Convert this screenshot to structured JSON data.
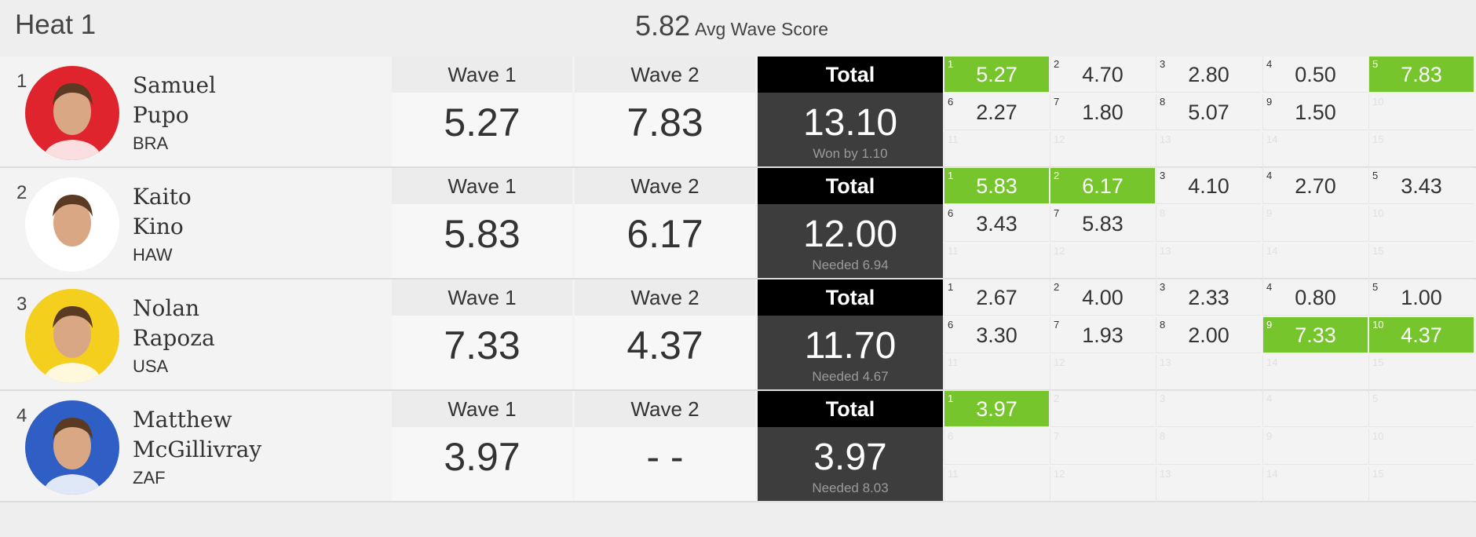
{
  "heat": {
    "title": "Heat 1",
    "avg_value": "5.82",
    "avg_label": "Avg Wave Score"
  },
  "colors": {
    "best_wave": "#76c52c",
    "total_bg": "#3d3d3d",
    "total_header": "#000000"
  },
  "surfers": [
    {
      "rank": "1",
      "first": "Samuel",
      "last": "Pupo",
      "country": "BRA",
      "wave1_label": "Wave 1",
      "wave1": "5.27",
      "wave2_label": "Wave 2",
      "wave2": "7.83",
      "total_label": "Total",
      "total": "13.10",
      "status": "Won by 1.10",
      "avatar_bg": "#e0242d",
      "waves": [
        {
          "n": "1",
          "s": "5.27",
          "best": true
        },
        {
          "n": "2",
          "s": "4.70"
        },
        {
          "n": "3",
          "s": "2.80"
        },
        {
          "n": "4",
          "s": "0.50"
        },
        {
          "n": "5",
          "s": "7.83",
          "best": true
        },
        {
          "n": "6",
          "s": "2.27"
        },
        {
          "n": "7",
          "s": "1.80"
        },
        {
          "n": "8",
          "s": "5.07"
        },
        {
          "n": "9",
          "s": "1.50"
        },
        {
          "n": "10",
          "s": ""
        },
        {
          "n": "11",
          "s": ""
        },
        {
          "n": "12",
          "s": ""
        },
        {
          "n": "13",
          "s": ""
        },
        {
          "n": "14",
          "s": ""
        },
        {
          "n": "15",
          "s": ""
        }
      ]
    },
    {
      "rank": "2",
      "first": "Kaito",
      "last": "Kino",
      "country": "HAW",
      "wave1_label": "Wave 1",
      "wave1": "5.83",
      "wave2_label": "Wave 2",
      "wave2": "6.17",
      "total_label": "Total",
      "total": "12.00",
      "status": "Needed 6.94",
      "avatar_bg": "#ffffff",
      "waves": [
        {
          "n": "1",
          "s": "5.83",
          "best": true
        },
        {
          "n": "2",
          "s": "6.17",
          "best": true
        },
        {
          "n": "3",
          "s": "4.10"
        },
        {
          "n": "4",
          "s": "2.70"
        },
        {
          "n": "5",
          "s": "3.43"
        },
        {
          "n": "6",
          "s": "3.43"
        },
        {
          "n": "7",
          "s": "5.83"
        },
        {
          "n": "8",
          "s": ""
        },
        {
          "n": "9",
          "s": ""
        },
        {
          "n": "10",
          "s": ""
        },
        {
          "n": "11",
          "s": ""
        },
        {
          "n": "12",
          "s": ""
        },
        {
          "n": "13",
          "s": ""
        },
        {
          "n": "14",
          "s": ""
        },
        {
          "n": "15",
          "s": ""
        }
      ]
    },
    {
      "rank": "3",
      "first": "Nolan",
      "last": "Rapoza",
      "country": "USA",
      "wave1_label": "Wave 1",
      "wave1": "7.33",
      "wave2_label": "Wave 2",
      "wave2": "4.37",
      "total_label": "Total",
      "total": "11.70",
      "status": "Needed 4.67",
      "avatar_bg": "#f5cf1e",
      "waves": [
        {
          "n": "1",
          "s": "2.67"
        },
        {
          "n": "2",
          "s": "4.00"
        },
        {
          "n": "3",
          "s": "2.33"
        },
        {
          "n": "4",
          "s": "0.80"
        },
        {
          "n": "5",
          "s": "1.00"
        },
        {
          "n": "6",
          "s": "3.30"
        },
        {
          "n": "7",
          "s": "1.93"
        },
        {
          "n": "8",
          "s": "2.00"
        },
        {
          "n": "9",
          "s": "7.33",
          "best": true
        },
        {
          "n": "10",
          "s": "4.37",
          "best": true
        },
        {
          "n": "11",
          "s": ""
        },
        {
          "n": "12",
          "s": ""
        },
        {
          "n": "13",
          "s": ""
        },
        {
          "n": "14",
          "s": ""
        },
        {
          "n": "15",
          "s": ""
        }
      ]
    },
    {
      "rank": "4",
      "first": "Matthew",
      "last": "McGillivray",
      "country": "ZAF",
      "wave1_label": "Wave 1",
      "wave1": "3.97",
      "wave2_label": "Wave 2",
      "wave2": "- -",
      "total_label": "Total",
      "total": "3.97",
      "status": "Needed 8.03",
      "avatar_bg": "#2f5fc4",
      "waves": [
        {
          "n": "1",
          "s": "3.97",
          "best": true
        },
        {
          "n": "2",
          "s": ""
        },
        {
          "n": "3",
          "s": ""
        },
        {
          "n": "4",
          "s": ""
        },
        {
          "n": "5",
          "s": ""
        },
        {
          "n": "6",
          "s": ""
        },
        {
          "n": "7",
          "s": ""
        },
        {
          "n": "8",
          "s": ""
        },
        {
          "n": "9",
          "s": ""
        },
        {
          "n": "10",
          "s": ""
        },
        {
          "n": "11",
          "s": ""
        },
        {
          "n": "12",
          "s": ""
        },
        {
          "n": "13",
          "s": ""
        },
        {
          "n": "14",
          "s": ""
        },
        {
          "n": "15",
          "s": ""
        }
      ]
    }
  ]
}
